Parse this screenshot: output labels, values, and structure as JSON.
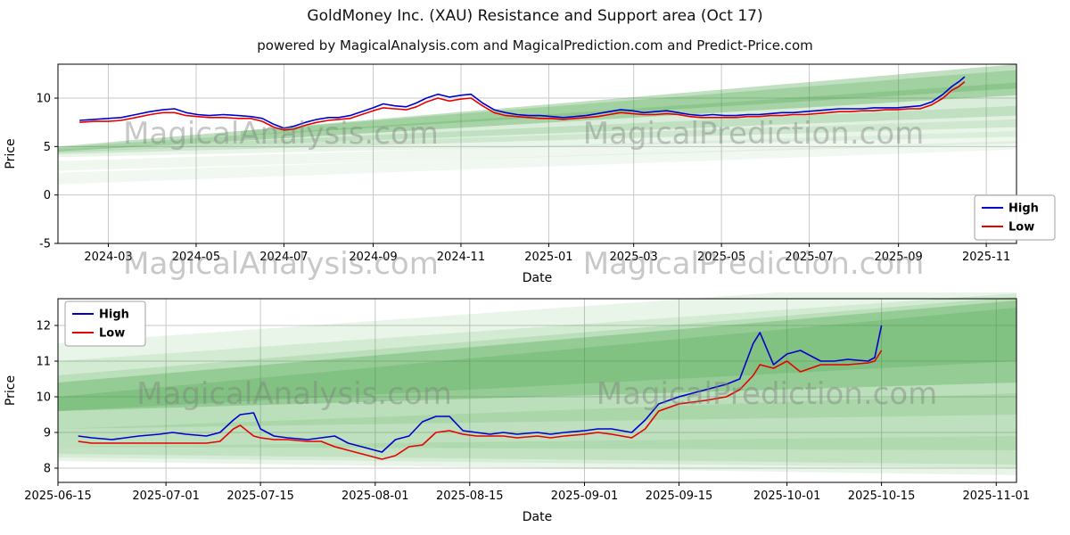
{
  "title": "GoldMoney Inc. (XAU) Resistance and Support area (Oct 17)",
  "subtitle": "powered by MagicalAnalysis.com and MagicalPrediction.com and Predict-Price.com",
  "watermarks": [
    "MagicalAnalysis.com",
    "MagicalPrediction.com"
  ],
  "colors": {
    "high": "#0000cc",
    "low": "#e60000",
    "band": "#339933",
    "grid": "#c8c8c8",
    "axis": "#000000"
  },
  "chart_data": [
    {
      "type": "line",
      "title": "",
      "xlabel": "Date",
      "ylabel": "Price",
      "x_range": [
        "2024-01-26",
        "2025-11-22"
      ],
      "ylim": [
        -5,
        13.5
      ],
      "y_ticks": [
        -5,
        0,
        5,
        10
      ],
      "x_ticks": [
        {
          "label": "2024-03",
          "date": "2024-03-01"
        },
        {
          "label": "2024-05",
          "date": "2024-05-01"
        },
        {
          "label": "2024-07",
          "date": "2024-07-01"
        },
        {
          "label": "2024-09",
          "date": "2024-09-01"
        },
        {
          "label": "2024-11",
          "date": "2024-11-01"
        },
        {
          "label": "2025-01",
          "date": "2025-01-01"
        },
        {
          "label": "2025-03",
          "date": "2025-03-01"
        },
        {
          "label": "2025-05",
          "date": "2025-05-01"
        },
        {
          "label": "2025-07",
          "date": "2025-07-01"
        },
        {
          "label": "2025-09",
          "date": "2025-09-01"
        },
        {
          "label": "2025-11",
          "date": "2025-11-01"
        }
      ],
      "legend": {
        "position": "lower-right",
        "entries": [
          {
            "label": "High",
            "color": "#0000cc"
          },
          {
            "label": "Low",
            "color": "#e60000"
          }
        ]
      },
      "x": [
        "2024-02-10",
        "2024-02-20",
        "2024-03-01",
        "2024-03-10",
        "2024-03-20",
        "2024-03-30",
        "2024-04-08",
        "2024-04-16",
        "2024-04-24",
        "2024-05-02",
        "2024-05-10",
        "2024-05-20",
        "2024-05-30",
        "2024-06-08",
        "2024-06-16",
        "2024-06-24",
        "2024-07-01",
        "2024-07-08",
        "2024-07-16",
        "2024-07-24",
        "2024-08-01",
        "2024-08-08",
        "2024-08-16",
        "2024-08-24",
        "2024-09-01",
        "2024-09-08",
        "2024-09-16",
        "2024-09-24",
        "2024-10-01",
        "2024-10-08",
        "2024-10-16",
        "2024-10-24",
        "2024-11-01",
        "2024-11-08",
        "2024-11-16",
        "2024-11-24",
        "2024-12-02",
        "2024-12-10",
        "2024-12-18",
        "2024-12-26",
        "2025-01-03",
        "2025-01-11",
        "2025-01-19",
        "2025-01-27",
        "2025-02-04",
        "2025-02-12",
        "2025-02-20",
        "2025-02-28",
        "2025-03-08",
        "2025-03-16",
        "2025-03-24",
        "2025-04-01",
        "2025-04-09",
        "2025-04-17",
        "2025-04-25",
        "2025-05-03",
        "2025-05-11",
        "2025-05-19",
        "2025-05-27",
        "2025-06-04",
        "2025-06-12",
        "2025-06-20",
        "2025-06-28",
        "2025-07-06",
        "2025-07-14",
        "2025-07-22",
        "2025-07-30",
        "2025-08-07",
        "2025-08-15",
        "2025-08-23",
        "2025-08-31",
        "2025-09-08",
        "2025-09-16",
        "2025-09-24",
        "2025-10-02",
        "2025-10-08",
        "2025-10-13",
        "2025-10-17"
      ],
      "series": [
        {
          "name": "High",
          "color": "#0000cc",
          "values": [
            7.7,
            7.8,
            7.9,
            8.0,
            8.3,
            8.6,
            8.8,
            8.9,
            8.5,
            8.3,
            8.2,
            8.3,
            8.2,
            8.1,
            7.9,
            7.3,
            6.9,
            7.1,
            7.5,
            7.8,
            8.0,
            8.0,
            8.2,
            8.6,
            9.0,
            9.4,
            9.2,
            9.1,
            9.5,
            10.0,
            10.4,
            10.1,
            10.3,
            10.4,
            9.5,
            8.8,
            8.5,
            8.3,
            8.2,
            8.2,
            8.1,
            8.0,
            8.1,
            8.2,
            8.4,
            8.6,
            8.8,
            8.7,
            8.5,
            8.6,
            8.7,
            8.5,
            8.3,
            8.2,
            8.3,
            8.2,
            8.2,
            8.3,
            8.3,
            8.4,
            8.5,
            8.5,
            8.6,
            8.7,
            8.8,
            8.9,
            8.9,
            8.9,
            9.0,
            9.0,
            9.0,
            9.1,
            9.2,
            9.6,
            10.4,
            11.2,
            11.7,
            12.2
          ]
        },
        {
          "name": "Low",
          "color": "#e60000",
          "values": [
            7.5,
            7.6,
            7.6,
            7.7,
            8.0,
            8.3,
            8.5,
            8.5,
            8.2,
            8.1,
            8.0,
            8.0,
            7.9,
            7.9,
            7.6,
            7.0,
            6.7,
            6.8,
            7.2,
            7.5,
            7.7,
            7.8,
            7.9,
            8.3,
            8.7,
            9.0,
            8.9,
            8.8,
            9.1,
            9.6,
            10.0,
            9.7,
            9.9,
            10.0,
            9.2,
            8.5,
            8.2,
            8.1,
            8.0,
            7.9,
            7.9,
            7.8,
            7.9,
            8.0,
            8.1,
            8.3,
            8.5,
            8.4,
            8.3,
            8.3,
            8.4,
            8.3,
            8.1,
            8.0,
            8.0,
            8.0,
            8.0,
            8.1,
            8.1,
            8.2,
            8.2,
            8.3,
            8.3,
            8.4,
            8.5,
            8.6,
            8.6,
            8.7,
            8.7,
            8.8,
            8.8,
            8.9,
            8.9,
            9.3,
            10.0,
            10.8,
            11.2,
            11.7
          ]
        }
      ],
      "bands": [
        {
          "x1": "2024-01-26",
          "top1": 5.0,
          "bot1": 4.5,
          "x2": "2025-11-22",
          "top2": 13.5,
          "bot2": 10.3,
          "alpha": 0.3
        },
        {
          "x1": "2024-01-26",
          "top1": 4.9,
          "bot1": 4.4,
          "x2": "2025-11-22",
          "top2": 11.6,
          "bot2": 8.2,
          "alpha": 0.18
        },
        {
          "x1": "2024-01-26",
          "top1": 4.7,
          "bot1": 4.2,
          "x2": "2025-11-22",
          "top2": 9.2,
          "bot2": 7.0,
          "alpha": 0.15
        },
        {
          "x1": "2024-01-26",
          "top1": 4.5,
          "bot1": 3.9,
          "x2": "2025-11-22",
          "top2": 7.8,
          "bot2": 6.0,
          "alpha": 0.1
        },
        {
          "x1": "2024-01-26",
          "top1": 3.5,
          "bot1": 2.5,
          "x2": "2025-11-22",
          "top2": 6.6,
          "bot2": 5.3,
          "alpha": 0.08
        },
        {
          "x1": "2024-01-26",
          "top1": 2.3,
          "bot1": 1.1,
          "x2": "2025-11-22",
          "top2": 5.6,
          "bot2": 4.7,
          "alpha": 0.07
        },
        {
          "x1": "2024-06-01",
          "top1": 6.6,
          "bot1": 6.1,
          "x2": "2025-11-22",
          "top2": 12.9,
          "bot2": 11.0,
          "alpha": 0.22
        }
      ]
    },
    {
      "type": "line",
      "title": "",
      "xlabel": "Date",
      "ylabel": "Price",
      "x_range": [
        "2025-06-15",
        "2025-11-04"
      ],
      "ylim": [
        7.6,
        12.75
      ],
      "y_ticks": [
        8,
        9,
        10,
        11,
        12
      ],
      "x_ticks": [
        {
          "label": "2025-06-15",
          "date": "2025-06-15"
        },
        {
          "label": "2025-07-01",
          "date": "2025-07-01"
        },
        {
          "label": "2025-07-15",
          "date": "2025-07-15"
        },
        {
          "label": "2025-08-01",
          "date": "2025-08-01"
        },
        {
          "label": "2025-08-15",
          "date": "2025-08-15"
        },
        {
          "label": "2025-09-01",
          "date": "2025-09-01"
        },
        {
          "label": "2025-09-15",
          "date": "2025-09-15"
        },
        {
          "label": "2025-10-01",
          "date": "2025-10-01"
        },
        {
          "label": "2025-10-15",
          "date": "2025-10-15"
        },
        {
          "label": "2025-11-01",
          "date": "2025-11-01"
        }
      ],
      "legend": {
        "position": "upper-left",
        "entries": [
          {
            "label": "High",
            "color": "#0000cc"
          },
          {
            "label": "Low",
            "color": "#e60000"
          }
        ]
      },
      "x": [
        "2025-06-18",
        "2025-06-20",
        "2025-06-23",
        "2025-06-25",
        "2025-06-27",
        "2025-06-30",
        "2025-07-02",
        "2025-07-04",
        "2025-07-07",
        "2025-07-09",
        "2025-07-11",
        "2025-07-12",
        "2025-07-14",
        "2025-07-15",
        "2025-07-17",
        "2025-07-19",
        "2025-07-22",
        "2025-07-24",
        "2025-07-26",
        "2025-07-28",
        "2025-07-30",
        "2025-08-01",
        "2025-08-02",
        "2025-08-04",
        "2025-08-06",
        "2025-08-08",
        "2025-08-10",
        "2025-08-12",
        "2025-08-14",
        "2025-08-16",
        "2025-08-18",
        "2025-08-20",
        "2025-08-22",
        "2025-08-25",
        "2025-08-27",
        "2025-08-29",
        "2025-09-01",
        "2025-09-03",
        "2025-09-05",
        "2025-09-08",
        "2025-09-10",
        "2025-09-12",
        "2025-09-15",
        "2025-09-17",
        "2025-09-19",
        "2025-09-22",
        "2025-09-24",
        "2025-09-26",
        "2025-09-27",
        "2025-09-29",
        "2025-10-01",
        "2025-10-03",
        "2025-10-06",
        "2025-10-08",
        "2025-10-10",
        "2025-10-13",
        "2025-10-14",
        "2025-10-15"
      ],
      "series": [
        {
          "name": "High",
          "color": "#0000cc",
          "values": [
            8.9,
            8.85,
            8.8,
            8.85,
            8.9,
            8.95,
            9.0,
            8.95,
            8.9,
            9.0,
            9.35,
            9.5,
            9.55,
            9.1,
            8.9,
            8.85,
            8.8,
            8.85,
            8.9,
            8.7,
            8.6,
            8.5,
            8.45,
            8.8,
            8.9,
            9.3,
            9.45,
            9.45,
            9.05,
            9.0,
            8.95,
            9.0,
            8.95,
            9.0,
            8.95,
            9.0,
            9.05,
            9.1,
            9.1,
            9.0,
            9.35,
            9.8,
            10.0,
            10.1,
            10.2,
            10.35,
            10.5,
            11.5,
            11.8,
            10.9,
            11.2,
            11.3,
            11.0,
            11.0,
            11.05,
            11.0,
            11.1,
            12.0
          ]
        },
        {
          "name": "Low",
          "color": "#e60000",
          "values": [
            8.75,
            8.7,
            8.7,
            8.7,
            8.7,
            8.7,
            8.7,
            8.7,
            8.7,
            8.75,
            9.1,
            9.2,
            8.9,
            8.85,
            8.8,
            8.8,
            8.75,
            8.75,
            8.6,
            8.5,
            8.4,
            8.3,
            8.25,
            8.35,
            8.6,
            8.65,
            9.0,
            9.05,
            8.95,
            8.9,
            8.9,
            8.9,
            8.85,
            8.9,
            8.85,
            8.9,
            8.95,
            9.0,
            8.95,
            8.85,
            9.1,
            9.6,
            9.8,
            9.85,
            9.9,
            10.0,
            10.2,
            10.6,
            10.9,
            10.8,
            11.0,
            10.7,
            10.9,
            10.9,
            10.9,
            10.95,
            11.0,
            11.3
          ]
        }
      ],
      "bands": [
        {
          "x1": "2025-06-15",
          "top1": 11.5,
          "bot1": 8.2,
          "x2": "2025-11-04",
          "top2": 13.4,
          "bot2": 7.8,
          "alpha": 0.1
        },
        {
          "x1": "2025-06-15",
          "top1": 11.0,
          "bot1": 8.6,
          "x2": "2025-11-04",
          "top2": 12.9,
          "bot2": 8.5,
          "alpha": 0.12
        },
        {
          "x1": "2025-06-15",
          "top1": 10.6,
          "bot1": 9.1,
          "x2": "2025-11-04",
          "top2": 12.8,
          "bot2": 9.5,
          "alpha": 0.15
        },
        {
          "x1": "2025-06-15",
          "top1": 10.4,
          "bot1": 9.6,
          "x2": "2025-11-04",
          "top2": 12.7,
          "bot2": 10.4,
          "alpha": 0.28
        },
        {
          "x1": "2025-06-15",
          "top1": 10.0,
          "bot1": 9.6,
          "x2": "2025-11-04",
          "top2": 12.5,
          "bot2": 11.0,
          "alpha": 0.2
        },
        {
          "x1": "2025-06-15",
          "top1": 9.1,
          "bot1": 8.4,
          "x2": "2025-11-04",
          "top2": 10.1,
          "bot2": 8.1,
          "alpha": 0.12
        },
        {
          "x1": "2025-06-15",
          "top1": 8.6,
          "bot1": 8.3,
          "x2": "2025-11-04",
          "top2": 8.9,
          "bot2": 8.0,
          "alpha": 0.1
        }
      ]
    }
  ]
}
